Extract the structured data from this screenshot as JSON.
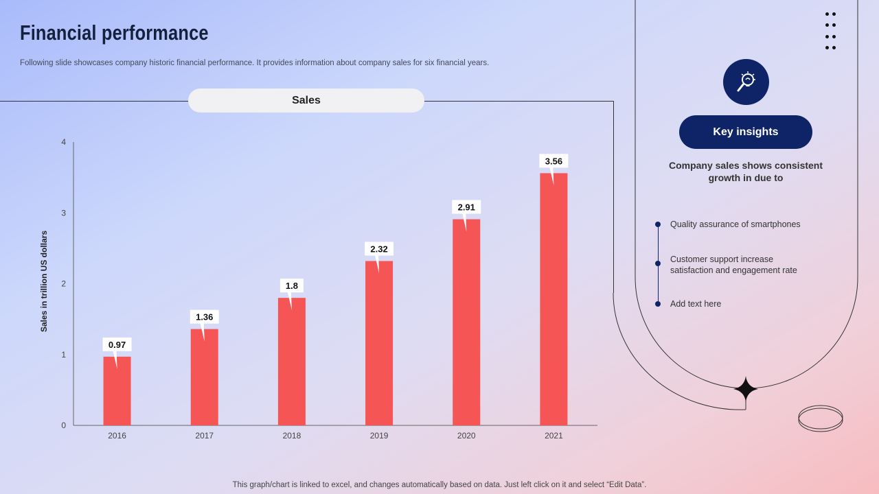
{
  "header": {
    "title": "Financial performance",
    "subtitle": "Following slide showcases company historic financial performance. It provides information about company sales for six financial years."
  },
  "chart_panel": {
    "pill_label": "Sales"
  },
  "chart_data": {
    "type": "bar",
    "title": "Sales",
    "categories": [
      "2016",
      "2017",
      "2018",
      "2019",
      "2020",
      "2021"
    ],
    "values": [
      0.97,
      1.36,
      1.8,
      2.32,
      2.91,
      3.56
    ],
    "data_labels": [
      "0.97",
      "1.36",
      "1.8",
      "2.32",
      "2.91",
      "3.56"
    ],
    "xlabel": "",
    "ylabel": "Sales in trillion US dollars",
    "ylim": [
      0,
      4
    ],
    "yticks": [
      "0",
      "1",
      "2",
      "3",
      "4"
    ],
    "bar_color": "#f55555",
    "grid": false,
    "legend": "none"
  },
  "insights": {
    "icon": "lightbulb-magnifier-icon",
    "button_label": "Key insights",
    "heading": "Company sales shows consistent growth in due to",
    "items": [
      {
        "text": "Quality assurance of smartphones"
      },
      {
        "text": "Customer support increase satisfaction and engagement rate"
      },
      {
        "text": "Add text here"
      }
    ]
  },
  "footer": {
    "note": "This graph/chart is linked to excel, and changes automatically based on data. Just left click on it and select “Edit Data”."
  },
  "colors": {
    "accent": "#0f2467",
    "bar": "#f55555"
  }
}
